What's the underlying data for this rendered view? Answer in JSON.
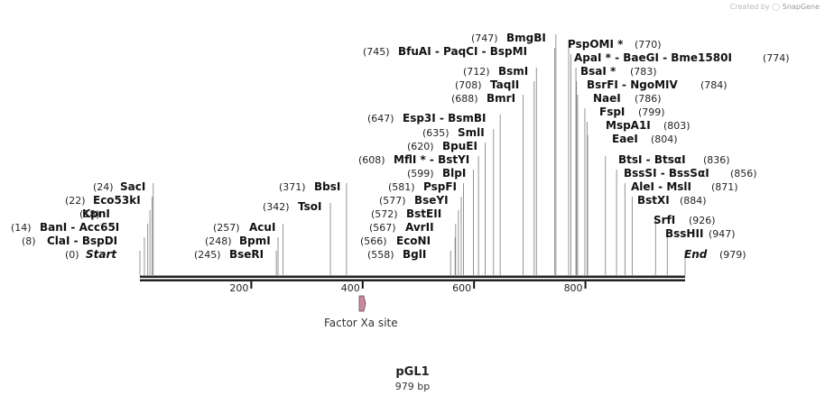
{
  "watermark": {
    "prefix": "Created by",
    "brand": "SnapGene"
  },
  "plasmid": {
    "name": "pGL1",
    "length_label": "979 bp",
    "length_bp": 979
  },
  "ruler": {
    "ticks": [
      "200",
      "400",
      "600",
      "800"
    ]
  },
  "feature": {
    "label": "Factor Xa site",
    "color": "#c98aa0"
  },
  "sites": [
    {
      "id": "start",
      "pos": 0,
      "label": "Start",
      "pos_label": "(0)",
      "italic": true
    },
    {
      "id": "clai",
      "pos": 8,
      "label": "ClaI  - BspDI",
      "pos_label": "(8)"
    },
    {
      "id": "bani",
      "pos": 14,
      "label": "BanI  - Acc65I",
      "pos_label": "(14)"
    },
    {
      "id": "kpni",
      "pos": 18,
      "label": "KpnI",
      "pos_label": "(18)"
    },
    {
      "id": "eco53ki",
      "pos": 22,
      "label": "Eco53kI",
      "pos_label": "(22)"
    },
    {
      "id": "saci",
      "pos": 24,
      "label": "SacI",
      "pos_label": "(24)"
    },
    {
      "id": "bseri",
      "pos": 245,
      "label": "BseRI",
      "pos_label": "(245)"
    },
    {
      "id": "bpmi",
      "pos": 248,
      "label": "BpmI",
      "pos_label": "(248)"
    },
    {
      "id": "acui",
      "pos": 257,
      "label": "AcuI",
      "pos_label": "(257)"
    },
    {
      "id": "tsoi",
      "pos": 342,
      "label": "TsoI",
      "pos_label": "(342)"
    },
    {
      "id": "bbsi",
      "pos": 371,
      "label": "BbsI",
      "pos_label": "(371)"
    },
    {
      "id": "bgli",
      "pos": 558,
      "label": "BglI",
      "pos_label": "(558)"
    },
    {
      "id": "econi",
      "pos": 566,
      "label": "EcoNI",
      "pos_label": "(566)"
    },
    {
      "id": "avrii",
      "pos": 567,
      "label": "AvrII",
      "pos_label": "(567)"
    },
    {
      "id": "bsteii",
      "pos": 572,
      "label": "BstEII",
      "pos_label": "(572)"
    },
    {
      "id": "bseyi",
      "pos": 577,
      "label": "BseYI",
      "pos_label": "(577)"
    },
    {
      "id": "pspfi",
      "pos": 581,
      "label": "PspFI",
      "pos_label": "(581)"
    },
    {
      "id": "blpi",
      "pos": 599,
      "label": "BlpI",
      "pos_label": "(599)"
    },
    {
      "id": "mfli",
      "pos": 608,
      "label": "MflI *  - BstYI",
      "pos_label": "(608)"
    },
    {
      "id": "bpuei",
      "pos": 620,
      "label": "BpuEI",
      "pos_label": "(620)"
    },
    {
      "id": "smli",
      "pos": 635,
      "label": "SmlI",
      "pos_label": "(635)"
    },
    {
      "id": "esp3i",
      "pos": 647,
      "label": "Esp3I  - BsmBI",
      "pos_label": "(647)"
    },
    {
      "id": "bmri",
      "pos": 688,
      "label": "BmrI",
      "pos_label": "(688)"
    },
    {
      "id": "taqii",
      "pos": 708,
      "label": "TaqII",
      "pos_label": "(708)"
    },
    {
      "id": "bsmi",
      "pos": 712,
      "label": "BsmI",
      "pos_label": "(712)"
    },
    {
      "id": "bfuai",
      "pos": 745,
      "label": "BfuAI  - PaqCI  - BspMI",
      "pos_label": "(745)"
    },
    {
      "id": "bmgbi",
      "pos": 747,
      "label": "BmgBI",
      "pos_label": "(747)"
    },
    {
      "id": "pspomi",
      "pos": 770,
      "label": "PspOMI *",
      "pos_label": "(770)"
    },
    {
      "id": "apai",
      "pos": 774,
      "label": "ApaI *  - BaeGI  - Bme1580I",
      "pos_label": "(774)"
    },
    {
      "id": "bsai",
      "pos": 783,
      "label": "BsaI *",
      "pos_label": "(783)"
    },
    {
      "id": "bsrfi",
      "pos": 784,
      "label": "BsrFI  - NgoMIV",
      "pos_label": "(784)"
    },
    {
      "id": "naei",
      "pos": 786,
      "label": "NaeI",
      "pos_label": "(786)"
    },
    {
      "id": "fspi",
      "pos": 799,
      "label": "FspI",
      "pos_label": "(799)"
    },
    {
      "id": "mspa1i",
      "pos": 803,
      "label": "MspA1I",
      "pos_label": "(803)"
    },
    {
      "id": "eaei",
      "pos": 804,
      "label": "EaeI",
      "pos_label": "(804)"
    },
    {
      "id": "btsi",
      "pos": 836,
      "label": "BtsI  - BtsαI",
      "pos_label": "(836)"
    },
    {
      "id": "bsssi",
      "pos": 856,
      "label": "BssSI  - BssSαI",
      "pos_label": "(856)"
    },
    {
      "id": "alei",
      "pos": 871,
      "label": "AleI  - MslI",
      "pos_label": "(871)"
    },
    {
      "id": "bstxi",
      "pos": 884,
      "label": "BstXI",
      "pos_label": "(884)"
    },
    {
      "id": "srfi",
      "pos": 926,
      "label": "SrfI",
      "pos_label": "(926)"
    },
    {
      "id": "bsshii",
      "pos": 947,
      "label": "BssHII",
      "pos_label": "(947)"
    },
    {
      "id": "end",
      "pos": 979,
      "label": "End",
      "pos_label": "(979)",
      "italic": true
    }
  ]
}
